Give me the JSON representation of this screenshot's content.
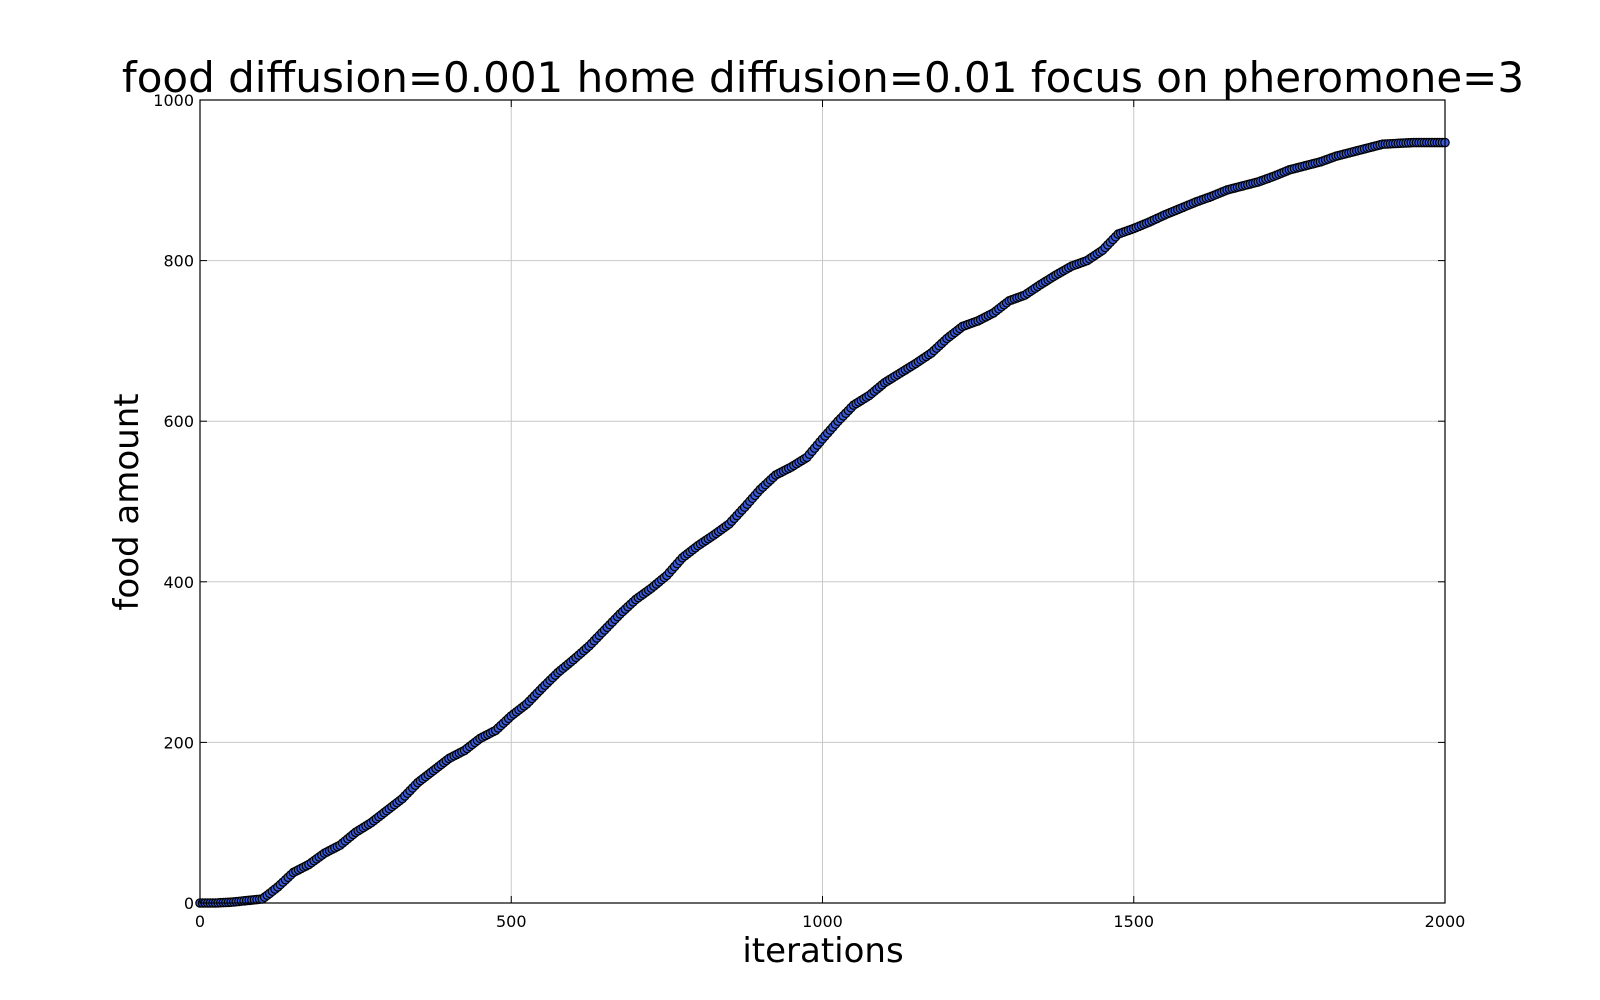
{
  "chart_data": {
    "type": "scatter",
    "title": "food diffusion=0.001 home diffusion=0.01 focus on pheromone=3",
    "xlabel": "iterations",
    "ylabel": "food amount",
    "xlim": [
      0,
      2000
    ],
    "ylim": [
      0,
      1000
    ],
    "xticks": [
      0,
      500,
      1000,
      1500,
      2000
    ],
    "yticks": [
      0,
      200,
      400,
      600,
      800,
      1000
    ],
    "xtick_labels": [
      "0",
      "500",
      "1000",
      "1500",
      "2000"
    ],
    "ytick_labels": [
      "0",
      "200",
      "400",
      "600",
      "800",
      "1000"
    ],
    "grid": true,
    "marker_color": "#3b5bd6",
    "marker_edge_color": "#000000",
    "series": [
      {
        "x": [
          0,
          25,
          50,
          75,
          100,
          112,
          125,
          150,
          175,
          200,
          225,
          250,
          275,
          300,
          325,
          350,
          375,
          400,
          425,
          450,
          475,
          500,
          525,
          550,
          575,
          600,
          625,
          650,
          675,
          700,
          725,
          750,
          775,
          800,
          825,
          850,
          875,
          900,
          925,
          950,
          975,
          1000,
          1025,
          1050,
          1075,
          1100,
          1125,
          1150,
          1175,
          1200,
          1225,
          1250,
          1275,
          1300,
          1325,
          1350,
          1375,
          1400,
          1425,
          1450,
          1475,
          1500,
          1525,
          1550,
          1575,
          1600,
          1625,
          1650,
          1675,
          1700,
          1725,
          1750,
          1775,
          1800,
          1825,
          1850,
          1875,
          1900,
          1925,
          1950,
          1975,
          2000
        ],
        "y": [
          0,
          0,
          1,
          3,
          5,
          12,
          20,
          38,
          48,
          62,
          72,
          88,
          100,
          115,
          130,
          150,
          165,
          180,
          190,
          205,
          215,
          233,
          248,
          268,
          287,
          303,
          320,
          340,
          360,
          378,
          392,
          408,
          430,
          445,
          458,
          472,
          493,
          515,
          533,
          543,
          555,
          578,
          600,
          620,
          632,
          648,
          660,
          672,
          685,
          703,
          718,
          725,
          735,
          750,
          757,
          770,
          782,
          793,
          800,
          813,
          833,
          840,
          848,
          857,
          865,
          873,
          880,
          888,
          893,
          898,
          905,
          913,
          918,
          923,
          930,
          935,
          940,
          945,
          946,
          947,
          947,
          947
        ]
      }
    ]
  }
}
